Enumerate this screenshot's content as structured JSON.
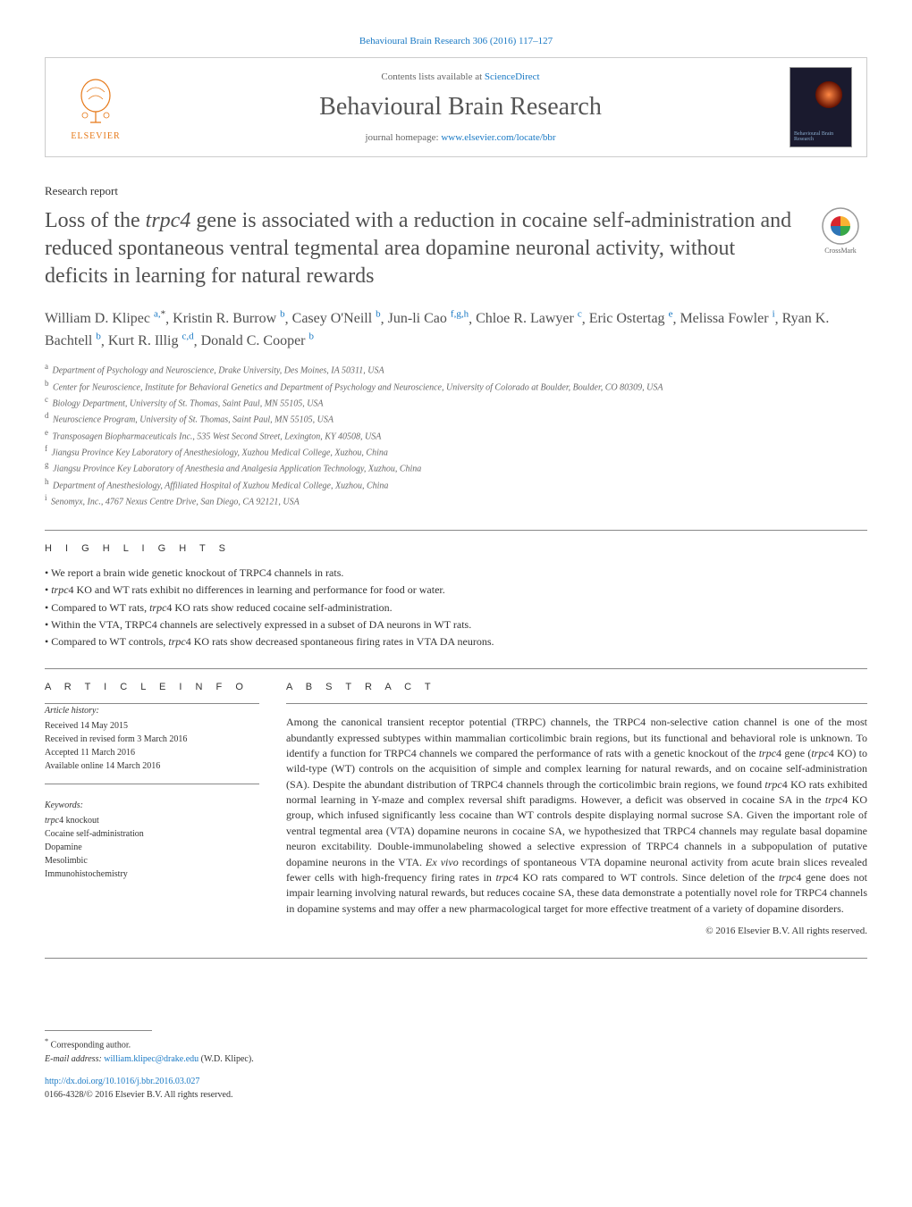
{
  "journal": {
    "citation_line": "Behavioural Brain Research 306 (2016) 117–127",
    "contents_prefix": "Contents lists available at ",
    "contents_link": "ScienceDirect",
    "title": "Behavioural Brain Research",
    "homepage_prefix": "journal homepage: ",
    "homepage_url": "www.elsevier.com/locate/bbr",
    "publisher": "ELSEVIER",
    "cover_label": "Behavioural Brain Research"
  },
  "colors": {
    "link": "#1979c4",
    "publisher": "#e67817",
    "text": "#333333",
    "heading": "#505050",
    "rule": "#888888"
  },
  "article": {
    "type": "Research report",
    "title_pre": "Loss of the ",
    "title_gene": "trpc4",
    "title_post": " gene is associated with a reduction in cocaine self-administration and reduced spontaneous ventral tegmental area dopamine neuronal activity, without deficits in learning for natural rewards",
    "crossmark_label": "CrossMark"
  },
  "authors": [
    {
      "name": "William D. Klipec",
      "sup": "a,*"
    },
    {
      "name": "Kristin R. Burrow",
      "sup": "b"
    },
    {
      "name": "Casey O'Neill",
      "sup": "b"
    },
    {
      "name": "Jun-li Cao",
      "sup": "f,g,h"
    },
    {
      "name": "Chloe R. Lawyer",
      "sup": "c"
    },
    {
      "name": "Eric Ostertag",
      "sup": "e"
    },
    {
      "name": "Melissa Fowler",
      "sup": "i"
    },
    {
      "name": "Ryan K. Bachtell",
      "sup": "b"
    },
    {
      "name": "Kurt R. Illig",
      "sup": "c,d"
    },
    {
      "name": "Donald C. Cooper",
      "sup": "b"
    }
  ],
  "affiliations": [
    {
      "key": "a",
      "text": "Department of Psychology and Neuroscience, Drake University, Des Moines, IA 50311, USA"
    },
    {
      "key": "b",
      "text": "Center for Neuroscience, Institute for Behavioral Genetics and Department of Psychology and Neuroscience, University of Colorado at Boulder, Boulder, CO 80309, USA"
    },
    {
      "key": "c",
      "text": "Biology Department, University of St. Thomas, Saint Paul, MN 55105, USA"
    },
    {
      "key": "d",
      "text": "Neuroscience Program, University of St. Thomas, Saint Paul, MN 55105, USA"
    },
    {
      "key": "e",
      "text": "Transposagen Biopharmaceuticals Inc., 535 West Second Street, Lexington, KY 40508, USA"
    },
    {
      "key": "f",
      "text": "Jiangsu Province Key Laboratory of Anesthesiology, Xuzhou Medical College, Xuzhou, China"
    },
    {
      "key": "g",
      "text": "Jiangsu Province Key Laboratory of Anesthesia and Analgesia Application Technology, Xuzhou, China"
    },
    {
      "key": "h",
      "text": "Department of Anesthesiology, Affiliated Hospital of Xuzhou Medical College, Xuzhou, China"
    },
    {
      "key": "i",
      "text": "Senomyx, Inc., 4767 Nexus Centre Drive, San Diego, CA 92121, USA"
    }
  ],
  "highlights": {
    "label": "H I G H L I G H T S",
    "items": [
      {
        "text": "We report a brain wide genetic knockout of TRPC4 channels in rats."
      },
      {
        "pre": "",
        "gene": "trpc",
        "post": "4 KO and WT rats exhibit no differences in learning and performance for food or water."
      },
      {
        "pre": "Compared to WT rats, ",
        "gene": "trpc",
        "post": "4 KO rats show reduced cocaine self-administration."
      },
      {
        "text": "Within the VTA, TRPC4 channels are selectively expressed in a subset of DA neurons in WT rats."
      },
      {
        "pre": "Compared to WT controls, ",
        "gene": "trpc",
        "post": "4 KO rats show decreased spontaneous firing rates in VTA DA neurons."
      }
    ]
  },
  "article_info": {
    "label": "A R T I C L E  I N F O",
    "history_heading": "Article history:",
    "received": "Received 14 May 2015",
    "revised": "Received in revised form 3 March 2016",
    "accepted": "Accepted 11 March 2016",
    "online": "Available online 14 March 2016",
    "keywords_heading": "Keywords:",
    "keywords": [
      {
        "gene": "trpc",
        "post": "4 knockout"
      },
      {
        "text": "Cocaine self-administration"
      },
      {
        "text": "Dopamine"
      },
      {
        "text": "Mesolimbic"
      },
      {
        "text": "Immunohistochemistry"
      }
    ]
  },
  "abstract": {
    "label": "A B S T R A C T",
    "text_parts": [
      {
        "t": "Among the canonical transient receptor potential (TRPC) channels, the TRPC4 non-selective cation channel is one of the most abundantly expressed subtypes within mammalian corticolimbic brain regions, but its functional and behavioral role is unknown. To identify a function for TRPC4 channels we compared the performance of rats with a genetic knockout of the "
      },
      {
        "i": "trpc"
      },
      {
        "t": "4 gene ("
      },
      {
        "i": "trpc"
      },
      {
        "t": "4 KO) to wild-type (WT) controls on the acquisition of simple and complex learning for natural rewards, and on cocaine self-administration (SA). Despite the abundant distribution of TRPC4 channels through the corticolimbic brain regions, we found "
      },
      {
        "i": "trpc"
      },
      {
        "t": "4 KO rats exhibited normal learning in Y-maze and complex reversal shift paradigms. However, a deficit was observed in cocaine SA in the "
      },
      {
        "i": "trpc"
      },
      {
        "t": "4 KO group, which infused significantly less cocaine than WT controls despite displaying normal sucrose SA. Given the important role of ventral tegmental area (VTA) dopamine neurons in cocaine SA, we hypothesized that TRPC4 channels may regulate basal dopamine neuron excitability. Double-immunolabeling showed a selective expression of TRPC4 channels in a subpopulation of putative dopamine neurons in the VTA. "
      },
      {
        "i": "Ex vivo"
      },
      {
        "t": " recordings of spontaneous VTA dopamine neuronal activity from acute brain slices revealed fewer cells with high-frequency firing rates in "
      },
      {
        "i": "trpc"
      },
      {
        "t": "4 KO rats compared to WT controls. Since deletion of the "
      },
      {
        "i": "trpc"
      },
      {
        "t": "4 gene does not impair learning involving natural rewards, but reduces cocaine SA, these data demonstrate a potentially novel role for TRPC4 channels in dopamine systems and may offer a new pharmacological target for more effective treatment of a variety of dopamine disorders."
      }
    ],
    "copyright": "© 2016 Elsevier B.V. All rights reserved."
  },
  "footer": {
    "corresponding": "Corresponding author.",
    "email_label": "E-mail address: ",
    "email": "william.klipec@drake.edu",
    "email_suffix": " (W.D. Klipec).",
    "doi": "http://dx.doi.org/10.1016/j.bbr.2016.03.027",
    "issn_copyright": "0166-4328/© 2016 Elsevier B.V. All rights reserved."
  }
}
